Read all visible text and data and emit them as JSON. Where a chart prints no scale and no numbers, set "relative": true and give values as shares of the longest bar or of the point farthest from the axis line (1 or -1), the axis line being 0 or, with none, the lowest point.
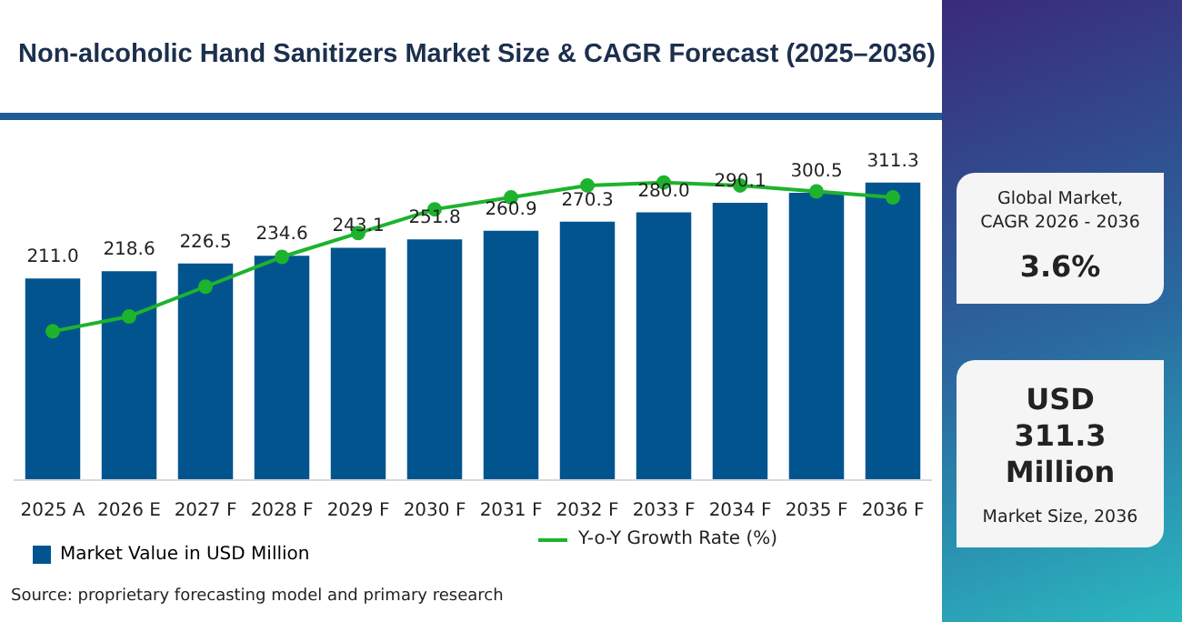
{
  "chart_data": [
    {
      "type": "bar",
      "title": "Non-alcoholic Hand Sanitizers Market Size & CAGR Forecast (2025–2036)",
      "categories": [
        "2025 A",
        "2026 E",
        "2027 F",
        "2028 F",
        "2029 F",
        "2030 F",
        "2031 F",
        "2032 F",
        "2033 F",
        "2034 F",
        "2035 F",
        "2036 F"
      ],
      "series": [
        {
          "name": "Market Value in USD Million",
          "color": "#02548f",
          "values": [
            211.0,
            218.6,
            226.5,
            234.6,
            243.1,
            251.8,
            260.9,
            270.3,
            280.0,
            290.1,
            300.5,
            311.3
          ],
          "value_labels": [
            "211.0",
            "218.6",
            "226.5",
            "234.6",
            "243.1",
            "251.8",
            "260.9",
            "270.3",
            "280.0",
            "290.1",
            "300.5",
            "311.3"
          ]
        }
      ],
      "legend": "bottom left",
      "grid": false,
      "tick_labels": "x",
      "annotations": [
        "Source: proprietary forecasting model and primary research"
      ]
    },
    {
      "type": "line",
      "categories": [
        null,
        null,
        null,
        null,
        null,
        null,
        null,
        null,
        null,
        null,
        null,
        null
      ],
      "series": [
        {
          "name": "Y-o-Y Growth Rate (%)",
          "color": "#1db32d",
          "values": [
            0.5,
            0.55,
            0.65,
            0.75,
            0.83,
            0.91,
            0.95,
            0.99,
            1,
            0.99,
            0.97,
            0.95
          ]
        }
      ],
      "relative": true,
      "legend": "bottom",
      "marker": "circle",
      "line_style": "solid"
    },
    {
      "type": "other",
      "annotations": [
        "Global Market, CAGR 2026 - 2036",
        "3.6%",
        "USD 311.3 Million",
        "Market Size, 2036"
      ]
    }
  ]
}
